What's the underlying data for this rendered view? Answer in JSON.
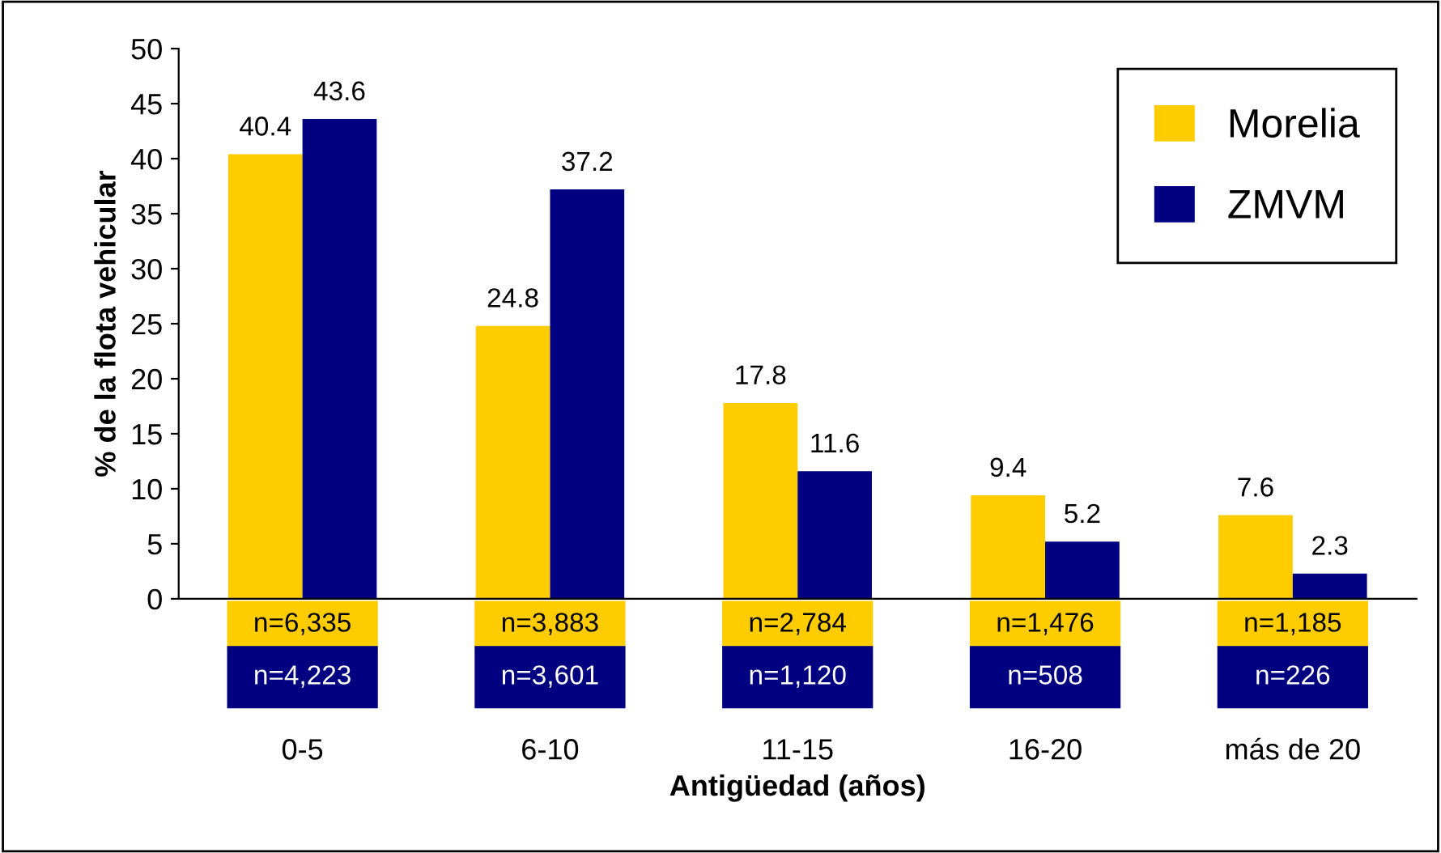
{
  "chart_data": {
    "type": "bar",
    "xlabel": "Antigüedad (años)",
    "ylabel": "% de la flota vehicular",
    "categories": [
      "0-5",
      "6-10",
      "11-15",
      "16-20",
      "más de 20"
    ],
    "series": [
      {
        "name": "Morelia",
        "color": "#ffcc00",
        "values": [
          40.4,
          24.8,
          17.8,
          9.4,
          7.6
        ]
      },
      {
        "name": "ZMVM",
        "color": "#000080",
        "values": [
          43.6,
          37.2,
          11.6,
          5.2,
          2.3
        ]
      }
    ],
    "ylim": [
      0,
      50
    ],
    "yticks": [
      0,
      5,
      10,
      15,
      20,
      25,
      30,
      35,
      40,
      45,
      50
    ],
    "data_labels": true,
    "legend": "top right",
    "grid": false,
    "annotations": [
      "n=6,335",
      "n=3,883",
      "n=2,784",
      "n=1,476",
      "n=1,185",
      "n=4,223",
      "n=3,601",
      "n=1,120",
      "n=508",
      "n=226"
    ]
  }
}
